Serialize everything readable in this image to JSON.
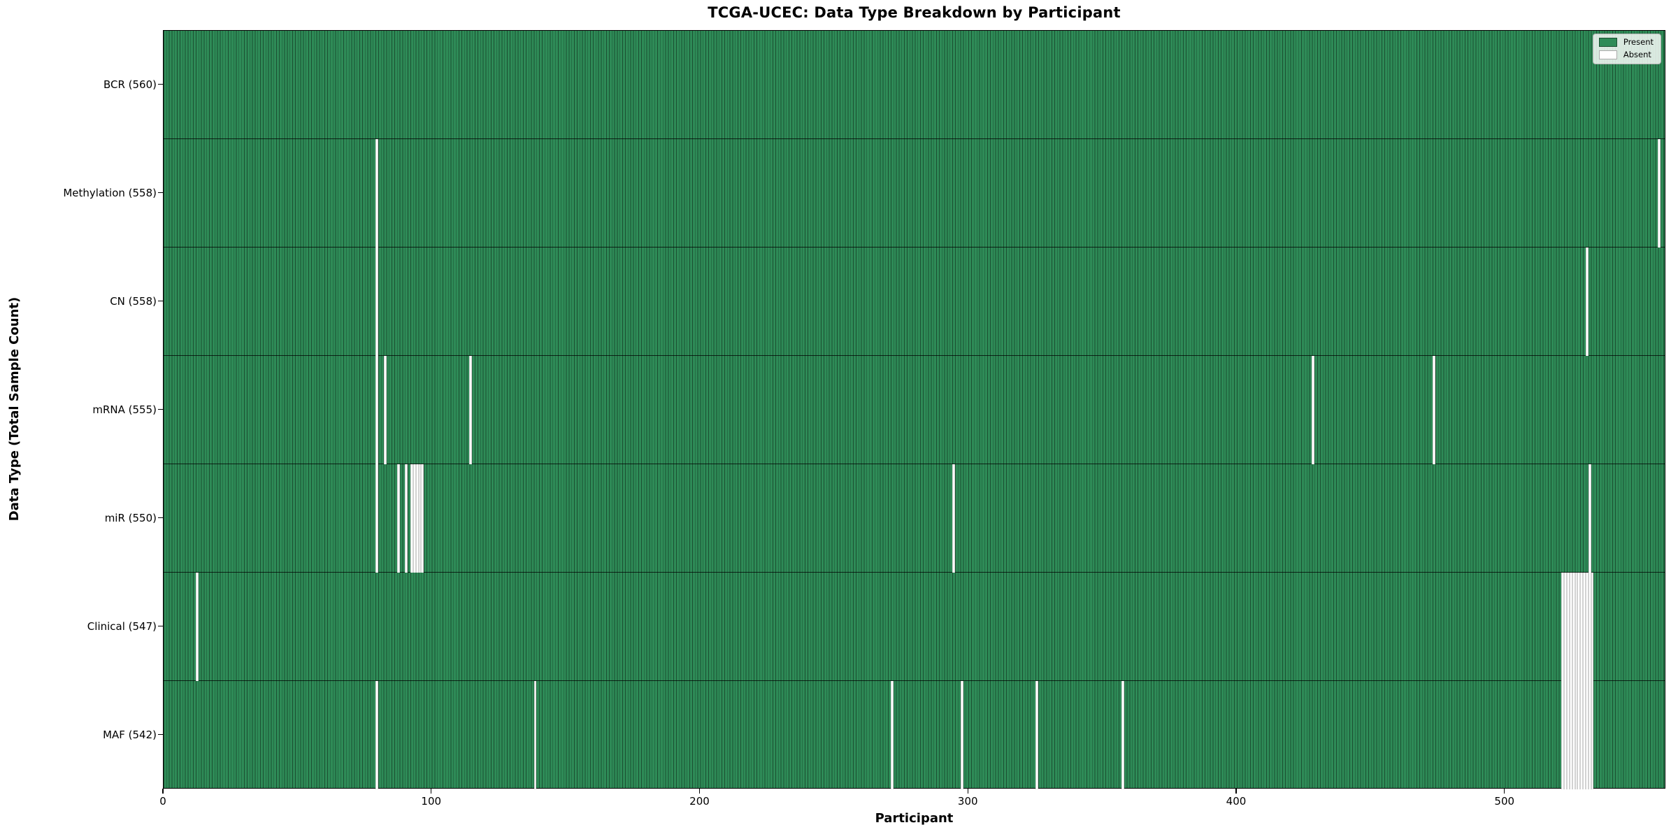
{
  "chart_data": {
    "type": "heatmap",
    "title": "TCGA-UCEC: Data Type Breakdown by Participant",
    "xlabel": "Participant",
    "ylabel": "Data Type (Total Sample Count)",
    "x_range": [
      0,
      560
    ],
    "x_ticks": [
      0,
      100,
      200,
      300,
      400,
      500
    ],
    "n_participants": 560,
    "grid": false,
    "legend": {
      "position": "upper right",
      "entries": [
        {
          "label": "Present",
          "color": "#2e8b57",
          "edge": "#1b4f31"
        },
        {
          "label": "Absent",
          "color": "#ffffff",
          "edge": "#aaaaaa"
        }
      ]
    },
    "rows": [
      {
        "label": "BCR (560)",
        "data_type": "BCR",
        "present_count": 560,
        "absent_participants": []
      },
      {
        "label": "Methylation (558)",
        "data_type": "Methylation",
        "present_count": 558,
        "absent_participants": [
          79,
          557
        ]
      },
      {
        "label": "CN (558)",
        "data_type": "CN",
        "present_count": 558,
        "absent_participants": [
          79,
          530
        ]
      },
      {
        "label": "mRNA (555)",
        "data_type": "mRNA",
        "present_count": 555,
        "absent_participants": [
          79,
          82,
          114,
          428,
          473
        ]
      },
      {
        "label": "miR (550)",
        "data_type": "miR",
        "present_count": 550,
        "absent_participants": [
          79,
          87,
          90,
          92,
          93,
          94,
          95,
          96,
          294,
          531
        ]
      },
      {
        "label": "Clinical (547)",
        "data_type": "Clinical",
        "present_count": 547,
        "absent_participants": [
          12,
          521,
          522,
          523,
          524,
          525,
          526,
          527,
          528,
          529,
          530,
          531,
          532
        ]
      },
      {
        "label": "MAF (542)",
        "data_type": "MAF",
        "present_count": 542,
        "absent_participants": [
          79,
          138,
          271,
          297,
          325,
          357,
          521,
          522,
          523,
          524,
          525,
          526,
          527,
          528,
          529,
          530,
          531,
          532
        ]
      }
    ],
    "colors": {
      "present": "#2e8b57",
      "present_edge": "#1b4f31",
      "absent": "#ffffff",
      "row_separator": "#000000",
      "plot_border": "#000000",
      "background": "#ffffff"
    }
  }
}
